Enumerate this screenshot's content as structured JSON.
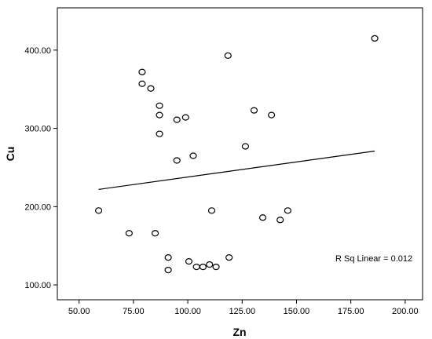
{
  "chart_data": {
    "type": "scatter",
    "title": "",
    "xlabel": "Zn",
    "ylabel": "Cu",
    "xlim": [
      40,
      208
    ],
    "ylim": [
      81,
      454
    ],
    "x_ticks": [
      50,
      75,
      100,
      125,
      150,
      175,
      200
    ],
    "y_ticks": [
      100,
      200,
      300,
      400
    ],
    "x_tick_labels": [
      "50.00",
      "75.00",
      "100.00",
      "125.00",
      "150.00",
      "175.00",
      "200.00"
    ],
    "y_tick_labels": [
      "100.00",
      "200.00",
      "300.00",
      "400.00"
    ],
    "grid": false,
    "legend": "none",
    "points": [
      {
        "x": 59,
        "y": 195
      },
      {
        "x": 73,
        "y": 166
      },
      {
        "x": 79,
        "y": 372
      },
      {
        "x": 79,
        "y": 357
      },
      {
        "x": 83,
        "y": 351
      },
      {
        "x": 85,
        "y": 166
      },
      {
        "x": 87,
        "y": 329
      },
      {
        "x": 87,
        "y": 317
      },
      {
        "x": 87,
        "y": 293
      },
      {
        "x": 91,
        "y": 135
      },
      {
        "x": 91,
        "y": 119
      },
      {
        "x": 95,
        "y": 311
      },
      {
        "x": 95,
        "y": 259
      },
      {
        "x": 99,
        "y": 314
      },
      {
        "x": 100.5,
        "y": 130
      },
      {
        "x": 102.5,
        "y": 265
      },
      {
        "x": 104,
        "y": 123
      },
      {
        "x": 107,
        "y": 123
      },
      {
        "x": 110,
        "y": 126
      },
      {
        "x": 111,
        "y": 195
      },
      {
        "x": 113,
        "y": 123
      },
      {
        "x": 118.5,
        "y": 393
      },
      {
        "x": 119,
        "y": 135
      },
      {
        "x": 126.5,
        "y": 277
      },
      {
        "x": 130.5,
        "y": 323
      },
      {
        "x": 134.5,
        "y": 186
      },
      {
        "x": 138.5,
        "y": 317
      },
      {
        "x": 142.5,
        "y": 183
      },
      {
        "x": 146,
        "y": 195
      },
      {
        "x": 186,
        "y": 415
      }
    ],
    "fit_line": {
      "x": [
        59,
        186
      ],
      "y": [
        222,
        271
      ]
    },
    "annotation": "R Sq Linear = 0.012",
    "colors": {
      "marker": "#000000",
      "line": "#000000",
      "background": "#ffffff"
    }
  }
}
